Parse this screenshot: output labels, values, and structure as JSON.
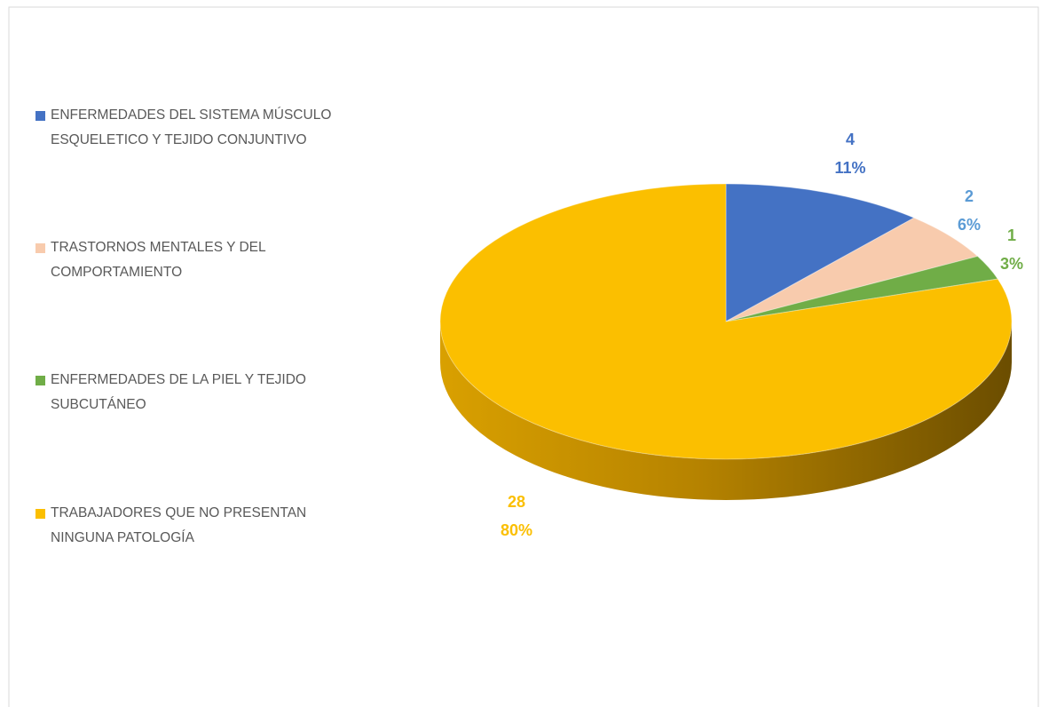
{
  "chart_data": {
    "type": "pie3d",
    "categories": [
      "ENFERMEDADES DEL SISTEMA MÚSCULO ESQUELETICO Y TEJIDO CONJUNTIVO",
      "TRASTORNOS MENTALES Y DEL COMPORTAMIENTO",
      "ENFERMEDADES DE LA PIEL Y TEJIDO SUBCUTÁNEO",
      "TRABAJADORES QUE NO PRESENTAN NINGUNA PATOLOGÍA"
    ],
    "values": [
      4,
      2,
      1,
      28
    ],
    "percent_labels": [
      "11%",
      "6%",
      "3%",
      "80%"
    ],
    "colors": [
      "#4472c4",
      "#f8cbad",
      "#70ad47",
      "#fbbf00"
    ],
    "label_colors": [
      "#4472c4",
      "#5b9bd5",
      "#70ad47",
      "#fbbf00"
    ],
    "legend": "left"
  }
}
